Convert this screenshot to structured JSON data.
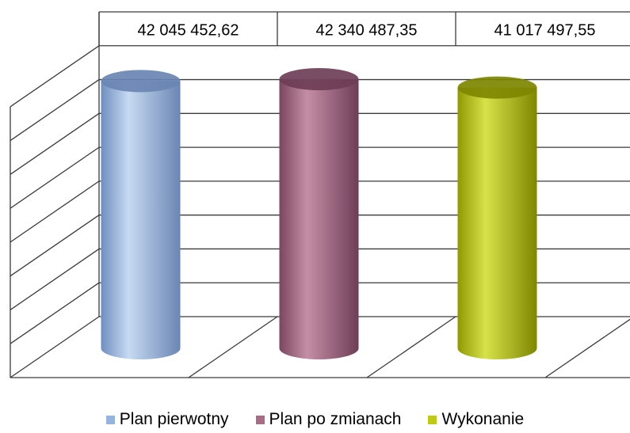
{
  "chart_data": {
    "type": "bar",
    "categories": [
      "Plan pierwotny",
      "Plan po zmianach",
      "Wykonanie"
    ],
    "values": [
      42045452.62,
      42340487.35,
      41017497.55
    ],
    "value_labels": [
      "42 045 452,62",
      "42 340 487,35",
      "41 017 497,55"
    ],
    "legend_placement": "bottom",
    "colors": [
      "#95b3de",
      "#a86c85",
      "#bfcb12"
    ],
    "grid": true
  }
}
